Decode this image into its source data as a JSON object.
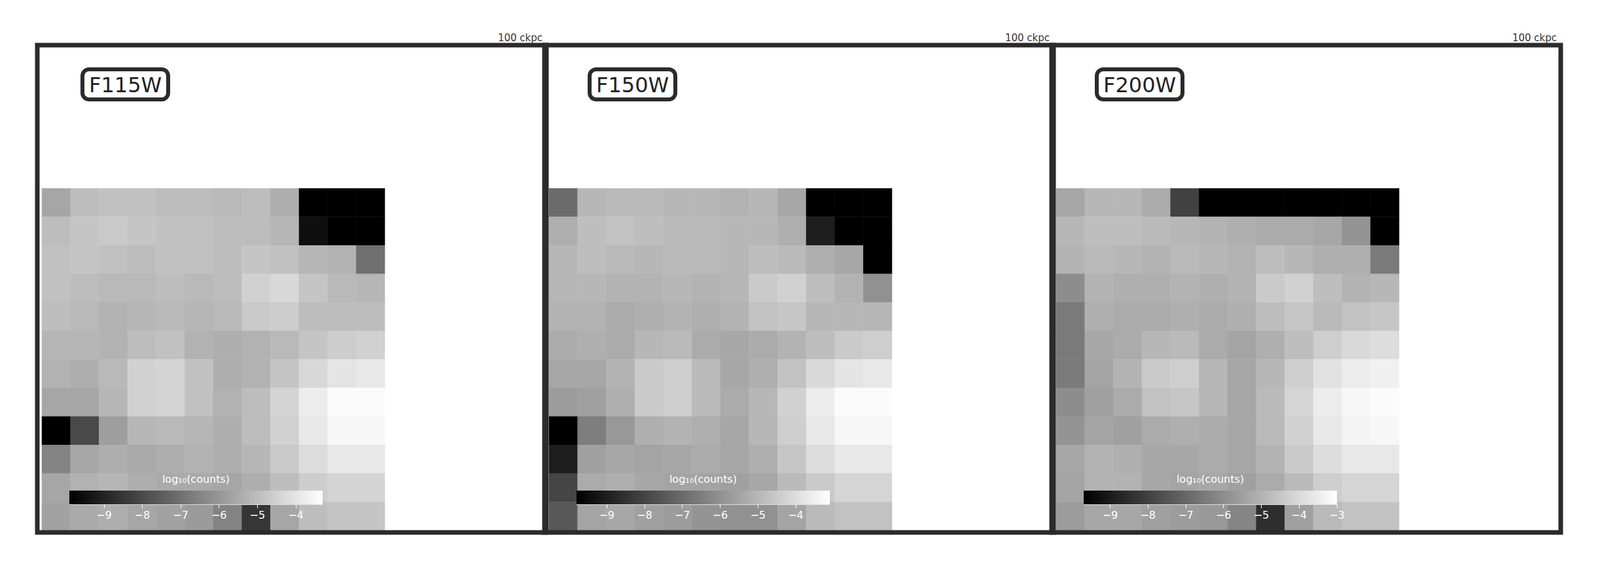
{
  "chart_data": [
    {
      "type": "heatmap",
      "title": "F115W",
      "annotation": "100 ckpc",
      "grid": false,
      "tick_labels": false,
      "cells": [
        [
          -5.6,
          -5.0,
          -4.9,
          -4.9,
          -5.0,
          -5.0,
          -5.1,
          -5.0,
          -5.4,
          -9.9,
          -9.9,
          -9.9
        ],
        [
          -5.0,
          -4.8,
          -4.7,
          -4.8,
          -4.9,
          -4.9,
          -5.0,
          -5.0,
          -5.2,
          -9.5,
          -9.9,
          -9.9
        ],
        [
          -4.9,
          -4.8,
          -4.9,
          -5.0,
          -4.9,
          -4.9,
          -5.0,
          -4.8,
          -4.9,
          -5.2,
          -5.3,
          -7.0
        ],
        [
          -4.9,
          -5.0,
          -5.1,
          -5.1,
          -5.0,
          -5.1,
          -5.0,
          -4.5,
          -4.3,
          -4.8,
          -5.1,
          -5.2
        ],
        [
          -5.0,
          -5.1,
          -5.3,
          -5.2,
          -5.1,
          -5.2,
          -5.1,
          -4.7,
          -4.6,
          -5.0,
          -5.0,
          -5.0
        ],
        [
          -5.2,
          -5.2,
          -5.3,
          -5.0,
          -4.9,
          -5.3,
          -5.4,
          -5.3,
          -5.1,
          -4.8,
          -4.6,
          -4.5
        ],
        [
          -5.3,
          -5.4,
          -5.1,
          -4.5,
          -4.4,
          -4.9,
          -5.4,
          -5.3,
          -4.8,
          -4.3,
          -4.0,
          -3.9
        ],
        [
          -5.6,
          -5.6,
          -5.2,
          -4.5,
          -4.4,
          -4.9,
          -5.3,
          -5.0,
          -4.4,
          -3.8,
          -3.4,
          -3.4
        ],
        [
          -9.9,
          -8.0,
          -5.8,
          -5.2,
          -5.1,
          -5.2,
          -5.4,
          -5.0,
          -4.5,
          -3.9,
          -3.5,
          -3.5
        ],
        [
          -6.5,
          -5.6,
          -5.4,
          -5.5,
          -5.4,
          -5.3,
          -5.4,
          -5.2,
          -4.7,
          -4.2,
          -3.9,
          -3.9
        ],
        [
          -5.6,
          -5.3,
          -5.2,
          -5.4,
          -5.5,
          -5.5,
          -5.6,
          -5.4,
          -5.0,
          -4.6,
          -4.4,
          -4.4
        ],
        [
          -5.7,
          -5.5,
          -5.4,
          -5.6,
          -5.7,
          -5.9,
          -6.5,
          -8.5,
          -5.6,
          -5.0,
          -4.8,
          -4.8
        ]
      ],
      "colorbar": {
        "label": "log₁₀(counts)",
        "range": [
          -9.9,
          -3.3
        ],
        "ticks": [
          {
            "value": -9,
            "label": "−9"
          },
          {
            "value": -8,
            "label": "−8"
          },
          {
            "value": -7,
            "label": "−7"
          },
          {
            "value": -6,
            "label": "−6"
          },
          {
            "value": -5,
            "label": "−5"
          },
          {
            "value": -4,
            "label": "−4"
          }
        ]
      }
    },
    {
      "type": "heatmap",
      "title": "F150W",
      "annotation": "100 ckpc",
      "grid": false,
      "tick_labels": false,
      "cells": [
        [
          -7.0,
          -5.0,
          -4.9,
          -4.9,
          -5.0,
          -5.0,
          -5.1,
          -5.0,
          -5.4,
          -9.8,
          -9.8,
          -9.8
        ],
        [
          -5.2,
          -4.8,
          -4.7,
          -4.8,
          -4.9,
          -4.9,
          -5.0,
          -5.0,
          -5.2,
          -9.0,
          -9.8,
          -9.8
        ],
        [
          -5.0,
          -4.8,
          -4.9,
          -5.0,
          -4.9,
          -4.9,
          -5.0,
          -4.8,
          -4.9,
          -5.2,
          -5.4,
          -9.8
        ],
        [
          -5.0,
          -5.0,
          -5.1,
          -5.1,
          -5.0,
          -5.1,
          -5.0,
          -4.5,
          -4.3,
          -4.8,
          -5.1,
          -6.0
        ],
        [
          -5.1,
          -5.1,
          -5.3,
          -5.2,
          -5.1,
          -5.2,
          -5.1,
          -4.7,
          -4.6,
          -5.0,
          -5.0,
          -5.0
        ],
        [
          -5.3,
          -5.2,
          -5.3,
          -5.0,
          -4.9,
          -5.3,
          -5.4,
          -5.3,
          -5.1,
          -4.8,
          -4.5,
          -4.4
        ],
        [
          -5.4,
          -5.4,
          -5.1,
          -4.5,
          -4.4,
          -4.9,
          -5.4,
          -5.2,
          -4.7,
          -4.1,
          -3.8,
          -3.7
        ],
        [
          -5.7,
          -5.6,
          -5.2,
          -4.5,
          -4.4,
          -4.9,
          -5.3,
          -5.0,
          -4.3,
          -3.6,
          -3.2,
          -3.2
        ],
        [
          -9.8,
          -6.5,
          -5.8,
          -5.2,
          -5.1,
          -5.2,
          -5.4,
          -5.0,
          -4.4,
          -3.7,
          -3.3,
          -3.3
        ],
        [
          -9.0,
          -5.6,
          -5.4,
          -5.5,
          -5.4,
          -5.3,
          -5.4,
          -5.2,
          -4.6,
          -4.0,
          -3.7,
          -3.7
        ],
        [
          -8.0,
          -5.3,
          -5.2,
          -5.4,
          -5.5,
          -5.5,
          -5.6,
          -5.4,
          -4.9,
          -4.5,
          -4.2,
          -4.2
        ],
        [
          -7.5,
          -5.5,
          -5.4,
          -5.6,
          -5.7,
          -5.9,
          -6.0,
          -6.0,
          -5.5,
          -4.9,
          -4.7,
          -4.7
        ]
      ],
      "colorbar": {
        "label": "log₁₀(counts)",
        "range": [
          -9.8,
          -3.1
        ],
        "ticks": [
          {
            "value": -9,
            "label": "−9"
          },
          {
            "value": -8,
            "label": "−8"
          },
          {
            "value": -7,
            "label": "−7"
          },
          {
            "value": -6,
            "label": "−6"
          },
          {
            "value": -5,
            "label": "−5"
          },
          {
            "value": -4,
            "label": "−4"
          }
        ]
      }
    },
    {
      "type": "heatmap",
      "title": "F200W",
      "annotation": "100 ckpc",
      "grid": false,
      "tick_labels": false,
      "cells": [
        [
          -5.3,
          -4.9,
          -4.9,
          -5.2,
          -8.0,
          -9.7,
          -9.7,
          -9.7,
          -9.7,
          -9.7,
          -9.7,
          -9.7
        ],
        [
          -4.9,
          -4.7,
          -4.7,
          -4.8,
          -4.9,
          -5.0,
          -5.1,
          -5.2,
          -5.2,
          -5.3,
          -5.8,
          -9.7
        ],
        [
          -5.0,
          -4.8,
          -4.9,
          -5.0,
          -4.8,
          -4.9,
          -5.0,
          -4.7,
          -4.9,
          -5.1,
          -5.1,
          -6.5
        ],
        [
          -6.0,
          -5.0,
          -5.1,
          -5.1,
          -5.0,
          -5.1,
          -5.0,
          -4.4,
          -4.2,
          -4.7,
          -5.0,
          -4.9
        ],
        [
          -6.5,
          -5.1,
          -5.2,
          -5.2,
          -5.1,
          -5.2,
          -5.1,
          -4.7,
          -4.5,
          -4.8,
          -4.6,
          -4.5
        ],
        [
          -6.5,
          -5.3,
          -5.2,
          -4.9,
          -4.8,
          -5.2,
          -5.4,
          -5.1,
          -4.7,
          -4.3,
          -4.0,
          -3.9
        ],
        [
          -6.5,
          -5.4,
          -5.0,
          -4.4,
          -4.3,
          -4.9,
          -5.3,
          -4.9,
          -4.3,
          -3.8,
          -3.5,
          -3.4
        ],
        [
          -6.0,
          -5.5,
          -5.2,
          -4.6,
          -4.5,
          -4.9,
          -5.3,
          -4.8,
          -4.1,
          -3.5,
          -3.2,
          -3.1
        ],
        [
          -5.8,
          -5.4,
          -5.5,
          -5.2,
          -5.1,
          -5.2,
          -5.3,
          -4.8,
          -4.2,
          -3.6,
          -3.3,
          -3.2
        ],
        [
          -5.3,
          -5.0,
          -5.1,
          -5.3,
          -5.3,
          -5.2,
          -5.3,
          -5.0,
          -4.4,
          -3.9,
          -3.6,
          -3.6
        ],
        [
          -5.4,
          -5.0,
          -5.0,
          -5.3,
          -5.4,
          -5.3,
          -5.5,
          -5.2,
          -4.8,
          -4.3,
          -4.1,
          -4.1
        ],
        [
          -5.6,
          -5.3,
          -5.3,
          -5.5,
          -5.6,
          -5.7,
          -6.2,
          -8.5,
          -5.5,
          -4.8,
          -4.6,
          -4.6
        ]
      ],
      "colorbar": {
        "label": "log₁₀(counts)",
        "range": [
          -9.7,
          -3.0
        ],
        "ticks": [
          {
            "value": -9,
            "label": "−9"
          },
          {
            "value": -8,
            "label": "−8"
          },
          {
            "value": -7,
            "label": "−7"
          },
          {
            "value": -6,
            "label": "−6"
          },
          {
            "value": -5,
            "label": "−5"
          },
          {
            "value": -4,
            "label": "−4"
          },
          {
            "value": -3,
            "label": "−3"
          }
        ]
      }
    }
  ]
}
